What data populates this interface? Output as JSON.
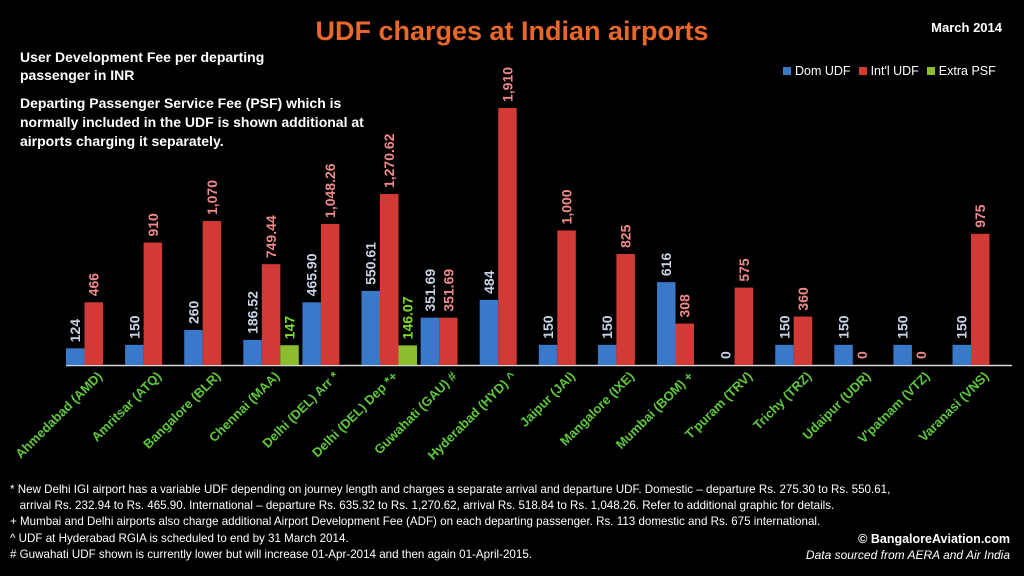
{
  "header": {
    "title": "UDF charges at Indian airports",
    "date": "March 2014",
    "description_1": "User Development Fee per departing passenger in INR",
    "description_2": "Departing Passenger Service Fee (PSF) which is normally included in the UDF is shown additional at airports charging it separately."
  },
  "legend": {
    "dom": "Dom UDF",
    "intl": "Int'l UDF",
    "extra": "Extra PSF"
  },
  "colors": {
    "dom": "#3a78c9",
    "intl": "#d23a36",
    "extra": "#8bbd2e",
    "dom_label": "#c9d3e6",
    "intl_label": "#f08a8a",
    "extra_label": "#7ddf2e",
    "category_label": "#5fc83c"
  },
  "chart_data": {
    "type": "bar",
    "categories": [
      "Ahmedabad (AMD)",
      "Amritsar (ATQ)",
      "Bangalore (BLR)",
      "Chennai (MAA)",
      "Delhi (DEL) Arr *",
      "Delhi (DEL) Dep *+",
      "Guwahati (GAU) #",
      "Hyderabad (HYD) ^",
      "Jaipur (JAI)",
      "Mangalore (IXE)",
      "Mumbai (BOM) +",
      "T'puram (TRV)",
      "Trichy (TRZ)",
      "Udaipur (UDR)",
      "V'patnam (VTZ)",
      "Varanasi (VNS)"
    ],
    "series": [
      {
        "name": "Dom UDF",
        "values": [
          124,
          150,
          260,
          186.52,
          465.9,
          550.61,
          351.69,
          484,
          150,
          150,
          616,
          0,
          150,
          150,
          150,
          150
        ],
        "labels": [
          "124",
          "150",
          "260",
          "186.52",
          "465.90",
          "550.61",
          "351.69",
          "484",
          "150",
          "150",
          "616",
          "0",
          "150",
          "150",
          "150",
          "150"
        ]
      },
      {
        "name": "Int'l UDF",
        "values": [
          466,
          910,
          1070,
          749.44,
          1048.26,
          1270.62,
          351.69,
          1910,
          1000,
          825,
          308,
          575,
          360,
          0,
          0,
          975
        ],
        "labels": [
          "466",
          "910",
          "1,070",
          "749.44",
          "1,048.26",
          "1,270.62",
          "351.69",
          "1,910",
          "1,000",
          "825",
          "308",
          "575",
          "360",
          "0",
          "0",
          "975"
        ]
      },
      {
        "name": "Extra PSF",
        "values": [
          null,
          null,
          null,
          147,
          null,
          146.07,
          null,
          null,
          null,
          null,
          null,
          null,
          null,
          null,
          null,
          null
        ],
        "labels": [
          null,
          null,
          null,
          "147",
          null,
          "146.07",
          null,
          null,
          null,
          null,
          null,
          null,
          null,
          null,
          null,
          null
        ]
      }
    ],
    "ylim": [
      0,
      1910
    ],
    "grid": false,
    "legend_position": "top-right"
  },
  "notes": [
    "* New Delhi IGI airport has a variable UDF depending on journey length and charges a separate arrival and departure UDF. Domestic – departure Rs. 275.30 to Rs. 550.61,",
    "   arrival Rs. 232.94 to Rs. 465.90. International – departure Rs. 635.32 to Rs. 1,270.62, arrival Rs. 518.84 to Rs. 1,048.26. Refer to additional graphic for details.",
    "+ Mumbai and Delhi airports also charge additional Airport Development Fee (ADF) on each departing passenger. Rs. 113 domestic and Rs. 675 international.",
    "^ UDF at Hyderabad RGIA is scheduled to end by 31 March 2014.",
    "# Guwahati UDF shown is currently lower but will increase 01-Apr-2014 and then again 01-April-2015."
  ],
  "footer": {
    "credit": "© BangaloreAviation.com",
    "source": "Data sourced from AERA and Air India"
  }
}
